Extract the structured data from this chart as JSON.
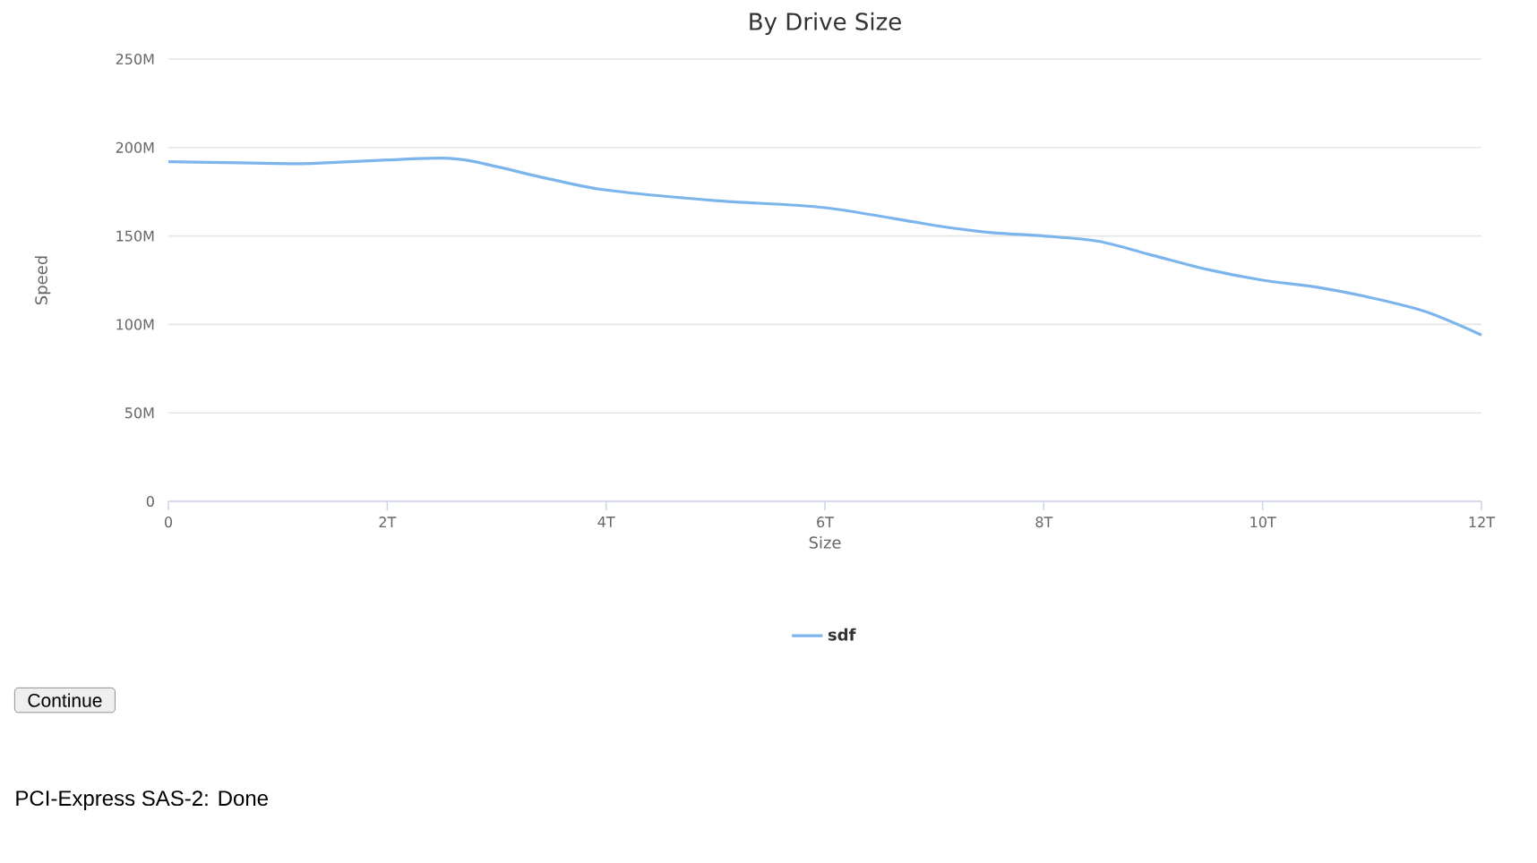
{
  "chart_data": {
    "type": "line",
    "title": "By Drive Size",
    "xlabel": "Size",
    "ylabel": "Speed",
    "x": [
      0,
      1,
      1.3,
      2,
      2.5,
      2.8,
      3.5,
      4,
      5,
      6,
      7,
      7.5,
      8,
      8.5,
      9,
      9.5,
      10,
      10.5,
      11,
      11.5,
      12
    ],
    "series": [
      {
        "name": "sdf",
        "color": "#7cb5ec",
        "values": [
          192,
          191,
          191,
          193,
          194,
          192,
          182,
          176,
          170,
          166,
          156,
          152,
          150,
          147,
          139,
          131,
          125,
          121,
          115,
          107,
          94
        ]
      }
    ],
    "xlim": [
      0,
      12
    ],
    "ylim": [
      0,
      250
    ],
    "xticks": [
      0,
      {
        "value": 2,
        "label": "2T"
      },
      {
        "value": 4,
        "label": "4T"
      },
      {
        "value": 6,
        "label": "6T"
      },
      {
        "value": 8,
        "label": "8T"
      },
      {
        "value": 10,
        "label": "10T"
      },
      {
        "value": 12,
        "label": "12T"
      }
    ],
    "yticks": [
      0,
      {
        "value": 50,
        "label": "50M"
      },
      {
        "value": 100,
        "label": "100M"
      },
      {
        "value": 150,
        "label": "150M"
      },
      {
        "value": 200,
        "label": "200M"
      },
      {
        "value": 250,
        "label": "250M"
      }
    ],
    "grid": "y",
    "legend": "bottom",
    "marker": "none",
    "line_style": "solid",
    "annotations": [
      "Continue",
      "PCI-Express SAS-2: Done"
    ]
  }
}
